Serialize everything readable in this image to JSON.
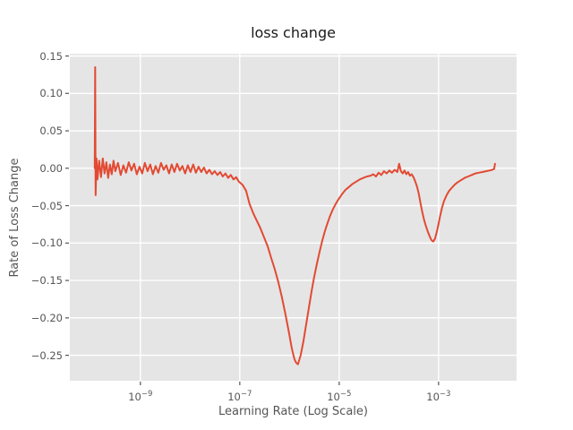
{
  "chart_data": {
    "type": "line",
    "title": "loss change",
    "xlabel": "Learning Rate (Log Scale)",
    "ylabel": "Rate of Loss Change",
    "x_scale": "log",
    "grid": true,
    "legend": "none",
    "xlim_log10": [
      -10.42,
      -1.43
    ],
    "ylim": [
      -0.284,
      0.153
    ],
    "colors": {
      "line": "#E24A33",
      "plot_background": "#E5E5E5",
      "grid": "#FFFFFF",
      "tick_text": "#555555",
      "title_text": "#1a1a1a",
      "tick_mark": "#555555"
    },
    "x_ticks": [
      {
        "log10": -9,
        "base": "10",
        "exp": "−9"
      },
      {
        "log10": -7,
        "base": "10",
        "exp": "−7"
      },
      {
        "log10": -5,
        "base": "10",
        "exp": "−5"
      },
      {
        "log10": -3,
        "base": "10",
        "exp": "−3"
      }
    ],
    "y_ticks": [
      {
        "value": 0.15,
        "label": "0.15"
      },
      {
        "value": 0.1,
        "label": "0.10"
      },
      {
        "value": 0.05,
        "label": "0.05"
      },
      {
        "value": 0.0,
        "label": "0.00"
      },
      {
        "value": -0.05,
        "label": "−0.05"
      },
      {
        "value": -0.1,
        "label": "−0.10"
      },
      {
        "value": -0.15,
        "label": "−0.15"
      },
      {
        "value": -0.2,
        "label": "−0.20"
      },
      {
        "value": -0.25,
        "label": "−0.25"
      }
    ],
    "points": [
      [
        -9.919,
        0.0
      ],
      [
        -9.91,
        0.135
      ],
      [
        -9.901,
        -0.036
      ],
      [
        -9.883,
        0.013
      ],
      [
        -9.865,
        -0.015
      ],
      [
        -9.829,
        0.01
      ],
      [
        -9.793,
        -0.012
      ],
      [
        -9.757,
        0.013
      ],
      [
        -9.721,
        -0.007
      ],
      [
        -9.685,
        0.008
      ],
      [
        -9.649,
        -0.013
      ],
      [
        -9.613,
        0.005
      ],
      [
        -9.577,
        -0.008
      ],
      [
        -9.541,
        0.01
      ],
      [
        -9.505,
        -0.004
      ],
      [
        -9.45,
        0.007
      ],
      [
        -9.396,
        -0.009
      ],
      [
        -9.342,
        0.004
      ],
      [
        -9.288,
        -0.006
      ],
      [
        -9.234,
        0.008
      ],
      [
        -9.18,
        -0.003
      ],
      [
        -9.126,
        0.006
      ],
      [
        -9.072,
        -0.008
      ],
      [
        -9.018,
        0.002
      ],
      [
        -8.964,
        -0.007
      ],
      [
        -8.91,
        0.007
      ],
      [
        -8.856,
        -0.004
      ],
      [
        -8.802,
        0.005
      ],
      [
        -8.748,
        -0.008
      ],
      [
        -8.694,
        0.003
      ],
      [
        -8.64,
        -0.006
      ],
      [
        -8.586,
        0.007
      ],
      [
        -8.532,
        -0.002
      ],
      [
        -8.477,
        0.004
      ],
      [
        -8.423,
        -0.007
      ],
      [
        -8.369,
        0.005
      ],
      [
        -8.315,
        -0.005
      ],
      [
        -8.261,
        0.006
      ],
      [
        -8.207,
        -0.003
      ],
      [
        -8.153,
        0.003
      ],
      [
        -8.099,
        -0.007
      ],
      [
        -8.045,
        0.004
      ],
      [
        -7.991,
        -0.005
      ],
      [
        -7.937,
        0.005
      ],
      [
        -7.883,
        -0.006
      ],
      [
        -7.829,
        0.002
      ],
      [
        -7.775,
        -0.005
      ],
      [
        -7.721,
        0.001
      ],
      [
        -7.667,
        -0.007
      ],
      [
        -7.613,
        -0.002
      ],
      [
        -7.559,
        -0.008
      ],
      [
        -7.505,
        -0.004
      ],
      [
        -7.45,
        -0.009
      ],
      [
        -7.396,
        -0.005
      ],
      [
        -7.342,
        -0.011
      ],
      [
        -7.288,
        -0.007
      ],
      [
        -7.234,
        -0.013
      ],
      [
        -7.18,
        -0.009
      ],
      [
        -7.126,
        -0.015
      ],
      [
        -7.072,
        -0.012
      ],
      [
        -7.018,
        -0.018
      ],
      [
        -6.946,
        -0.022
      ],
      [
        -6.874,
        -0.03
      ],
      [
        -6.802,
        -0.048
      ],
      [
        -6.73,
        -0.06
      ],
      [
        -6.658,
        -0.07
      ],
      [
        -6.586,
        -0.08
      ],
      [
        -6.514,
        -0.092
      ],
      [
        -6.441,
        -0.104
      ],
      [
        -6.369,
        -0.12
      ],
      [
        -6.297,
        -0.135
      ],
      [
        -6.225,
        -0.152
      ],
      [
        -6.153,
        -0.172
      ],
      [
        -6.081,
        -0.195
      ],
      [
        -6.009,
        -0.22
      ],
      [
        -5.955,
        -0.24
      ],
      [
        -5.901,
        -0.255
      ],
      [
        -5.865,
        -0.26
      ],
      [
        -5.829,
        -0.262
      ],
      [
        -5.775,
        -0.25
      ],
      [
        -5.721,
        -0.232
      ],
      [
        -5.667,
        -0.21
      ],
      [
        -5.613,
        -0.188
      ],
      [
        -5.559,
        -0.166
      ],
      [
        -5.505,
        -0.146
      ],
      [
        -5.45,
        -0.128
      ],
      [
        -5.396,
        -0.112
      ],
      [
        -5.342,
        -0.097
      ],
      [
        -5.288,
        -0.084
      ],
      [
        -5.234,
        -0.073
      ],
      [
        -5.18,
        -0.063
      ],
      [
        -5.126,
        -0.055
      ],
      [
        -5.072,
        -0.048
      ],
      [
        -5.018,
        -0.042
      ],
      [
        -4.946,
        -0.035
      ],
      [
        -4.874,
        -0.029
      ],
      [
        -4.802,
        -0.025
      ],
      [
        -4.73,
        -0.021
      ],
      [
        -4.658,
        -0.018
      ],
      [
        -4.586,
        -0.015
      ],
      [
        -4.514,
        -0.013
      ],
      [
        -4.441,
        -0.011
      ],
      [
        -4.369,
        -0.01
      ],
      [
        -4.315,
        -0.008
      ],
      [
        -4.261,
        -0.011
      ],
      [
        -4.207,
        -0.006
      ],
      [
        -4.153,
        -0.009
      ],
      [
        -4.099,
        -0.004
      ],
      [
        -4.045,
        -0.007
      ],
      [
        -3.991,
        -0.003
      ],
      [
        -3.937,
        -0.006
      ],
      [
        -3.883,
        -0.002
      ],
      [
        -3.829,
        -0.005
      ],
      [
        -3.793,
        0.006
      ],
      [
        -3.757,
        -0.004
      ],
      [
        -3.721,
        -0.007
      ],
      [
        -3.685,
        -0.003
      ],
      [
        -3.649,
        -0.008
      ],
      [
        -3.613,
        -0.005
      ],
      [
        -3.577,
        -0.01
      ],
      [
        -3.541,
        -0.008
      ],
      [
        -3.505,
        -0.012
      ],
      [
        -3.468,
        -0.018
      ],
      [
        -3.432,
        -0.025
      ],
      [
        -3.396,
        -0.035
      ],
      [
        -3.36,
        -0.048
      ],
      [
        -3.324,
        -0.06
      ],
      [
        -3.288,
        -0.07
      ],
      [
        -3.252,
        -0.078
      ],
      [
        -3.216,
        -0.085
      ],
      [
        -3.18,
        -0.091
      ],
      [
        -3.144,
        -0.096
      ],
      [
        -3.108,
        -0.098
      ],
      [
        -3.072,
        -0.094
      ],
      [
        -3.036,
        -0.085
      ],
      [
        -3.0,
        -0.074
      ],
      [
        -2.964,
        -0.062
      ],
      [
        -2.928,
        -0.052
      ],
      [
        -2.892,
        -0.044
      ],
      [
        -2.838,
        -0.036
      ],
      [
        -2.784,
        -0.03
      ],
      [
        -2.73,
        -0.026
      ],
      [
        -2.676,
        -0.022
      ],
      [
        -2.622,
        -0.019
      ],
      [
        -2.55,
        -0.016
      ],
      [
        -2.477,
        -0.013
      ],
      [
        -2.405,
        -0.011
      ],
      [
        -2.333,
        -0.009
      ],
      [
        -2.261,
        -0.007
      ],
      [
        -2.189,
        -0.006
      ],
      [
        -2.117,
        -0.005
      ],
      [
        -2.045,
        -0.004
      ],
      [
        -1.973,
        -0.003
      ],
      [
        -1.919,
        -0.002
      ],
      [
        -1.883,
        -0.001
      ],
      [
        -1.865,
        0.006
      ]
    ]
  }
}
